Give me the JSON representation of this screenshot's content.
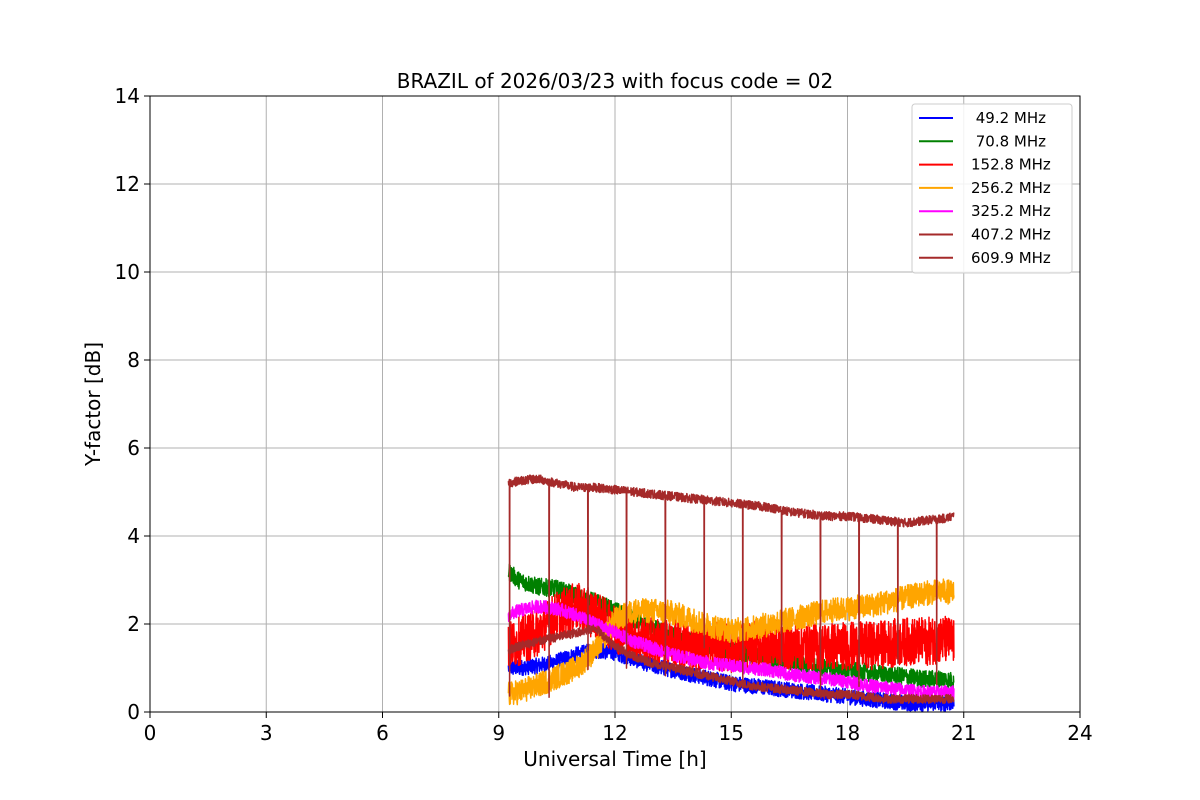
{
  "chart_data": {
    "type": "line",
    "title": "BRAZIL of 2026/03/23 with focus code = 02",
    "xlabel": "Universal Time [h]",
    "ylabel": "Y-factor [dB]",
    "xlim": [
      0,
      24
    ],
    "ylim": [
      0,
      14
    ],
    "xticks": [
      0,
      3,
      6,
      9,
      12,
      15,
      18,
      21,
      24
    ],
    "yticks": [
      0,
      2,
      4,
      6,
      8,
      10,
      12,
      14
    ],
    "grid": true,
    "legend_position": "top-right",
    "series": [
      {
        "name": " 49.2 MHz",
        "color": "#0000ff",
        "x": [
          9.25,
          9.5,
          10,
          10.5,
          11,
          11.5,
          12,
          12.5,
          13,
          13.5,
          14,
          14.5,
          15,
          15.5,
          16,
          16.5,
          17,
          17.5,
          18,
          18.5,
          19,
          19.5,
          20,
          20.5,
          20.75
        ],
        "y": [
          1.0,
          1.0,
          1.05,
          1.15,
          1.3,
          1.4,
          1.35,
          1.2,
          1.05,
          0.95,
          0.85,
          0.75,
          0.65,
          0.6,
          0.55,
          0.5,
          0.45,
          0.4,
          0.35,
          0.3,
          0.25,
          0.2,
          0.2,
          0.2,
          0.2
        ],
        "noise": 0.18
      },
      {
        "name": " 70.8 MHz",
        "color": "#008000",
        "x": [
          9.25,
          9.5,
          10,
          10.5,
          11,
          11.5,
          12,
          12.5,
          13,
          13.5,
          14,
          14.5,
          15,
          15.5,
          16,
          16.5,
          17,
          17.5,
          18,
          18.5,
          19,
          19.5,
          20,
          20.5,
          20.75
        ],
        "y": [
          3.2,
          3.0,
          2.85,
          2.8,
          2.65,
          2.5,
          2.3,
          2.1,
          1.9,
          1.75,
          1.6,
          1.5,
          1.4,
          1.3,
          1.2,
          1.15,
          1.05,
          1.0,
          0.95,
          0.9,
          0.85,
          0.8,
          0.75,
          0.75,
          0.7
        ],
        "noise": 0.2
      },
      {
        "name": "152.8 MHz",
        "color": "#ff0000",
        "x": [
          9.25,
          9.5,
          10,
          10.5,
          11,
          11.5,
          12,
          12.5,
          13,
          13.5,
          14,
          14.5,
          15,
          15.5,
          16,
          16.5,
          17,
          17.5,
          18,
          18.5,
          19,
          19.5,
          20,
          20.5,
          20.75
        ],
        "y": [
          1.5,
          1.6,
          1.8,
          2.2,
          2.4,
          2.2,
          1.9,
          1.7,
          1.6,
          1.55,
          1.5,
          1.5,
          1.45,
          1.5,
          1.55,
          1.5,
          1.5,
          1.5,
          1.5,
          1.5,
          1.55,
          1.6,
          1.6,
          1.65,
          1.6
        ],
        "noise": 0.55
      },
      {
        "name": "256.2 MHz",
        "color": "#ffa500",
        "x": [
          9.25,
          9.5,
          10,
          10.5,
          11,
          11.5,
          12,
          12.5,
          13,
          13.5,
          14,
          14.5,
          15,
          15.5,
          16,
          16.5,
          17,
          17.5,
          18,
          18.5,
          19,
          19.5,
          20,
          20.5,
          20.75
        ],
        "y": [
          0.4,
          0.45,
          0.6,
          0.8,
          1.0,
          1.4,
          2.1,
          2.3,
          2.3,
          2.25,
          2.1,
          1.95,
          1.85,
          1.9,
          2.0,
          2.1,
          2.2,
          2.3,
          2.35,
          2.4,
          2.5,
          2.6,
          2.7,
          2.75,
          2.7
        ],
        "noise": 0.28
      },
      {
        "name": "325.2 MHz",
        "color": "#ff00ff",
        "x": [
          9.25,
          9.5,
          10,
          10.5,
          11,
          11.5,
          12,
          12.5,
          13,
          13.5,
          14,
          14.5,
          15,
          15.5,
          16,
          16.5,
          17,
          17.5,
          18,
          18.5,
          19,
          19.5,
          20,
          20.5,
          20.75
        ],
        "y": [
          2.2,
          2.3,
          2.4,
          2.35,
          2.2,
          2.0,
          1.8,
          1.6,
          1.45,
          1.3,
          1.2,
          1.1,
          1.05,
          1.0,
          0.95,
          0.85,
          0.8,
          0.75,
          0.7,
          0.6,
          0.55,
          0.5,
          0.45,
          0.45,
          0.45
        ],
        "noise": 0.15
      },
      {
        "name": "407.2 MHz",
        "color": "#a52a2a",
        "x": [
          9.25,
          9.5,
          10,
          10.5,
          11,
          11.5,
          12,
          12.5,
          13,
          13.5,
          14,
          14.5,
          15,
          15.5,
          16,
          16.5,
          17,
          17.5,
          18,
          18.5,
          19,
          19.5,
          20,
          20.5,
          20.75
        ],
        "y": [
          1.4,
          1.5,
          1.6,
          1.7,
          1.8,
          1.9,
          1.5,
          1.25,
          1.1,
          1.0,
          0.9,
          0.8,
          0.7,
          0.6,
          0.55,
          0.5,
          0.45,
          0.4,
          0.4,
          0.35,
          0.3,
          0.3,
          0.3,
          0.3,
          0.3
        ],
        "noise": 0.1
      },
      {
        "name": "609.9 MHz",
        "color": "#a52a2a",
        "x": [
          9.25,
          9.5,
          10,
          10.5,
          11,
          11.5,
          12,
          12.5,
          13,
          13.5,
          14,
          14.5,
          15,
          15.5,
          16,
          16.5,
          17,
          17.5,
          18,
          18.5,
          19,
          19.5,
          20,
          20.5,
          20.75
        ],
        "y": [
          5.2,
          5.25,
          5.3,
          5.2,
          5.1,
          5.1,
          5.05,
          5.0,
          4.95,
          4.9,
          4.85,
          4.8,
          4.75,
          4.7,
          4.65,
          4.55,
          4.5,
          4.45,
          4.45,
          4.4,
          4.35,
          4.3,
          4.35,
          4.4,
          4.45
        ],
        "noise": 0.1,
        "dips": [
          9.28,
          10.3,
          11.3,
          12.3,
          13.3,
          14.3,
          15.3,
          16.3,
          17.3,
          18.3,
          19.3,
          20.3
        ]
      }
    ]
  }
}
